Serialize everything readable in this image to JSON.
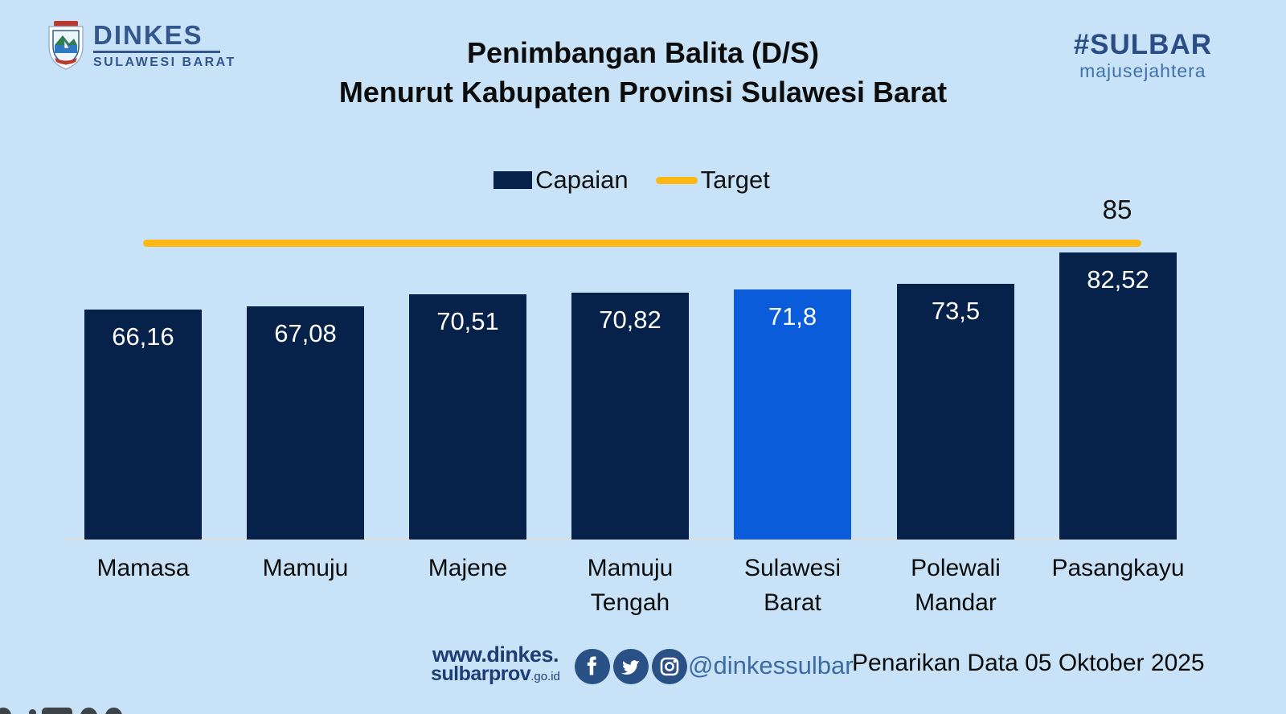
{
  "logo": {
    "title": "DINKES",
    "subtitle": "SULAWESI BARAT"
  },
  "title": {
    "line1": "Penimbangan Balita (D/S)",
    "line2": "Menurut Kabupaten Provinsi Sulawesi Barat"
  },
  "brand": {
    "hashtag": "#SULBAR",
    "tagline": "majusejahtera"
  },
  "legend": {
    "capaian": "Capaian",
    "target": "Target"
  },
  "chart_data": {
    "type": "bar",
    "title": "Penimbangan Balita (D/S) Menurut Kabupaten Provinsi Sulawesi Barat",
    "categories": [
      "Mamasa",
      "Mamuju",
      "Majene",
      "Mamuju Tengah",
      "Sulawesi Barat",
      "Polewali Mandar",
      "Pasangkayu"
    ],
    "values": [
      66.16,
      67.08,
      70.51,
      70.82,
      71.8,
      73.5,
      82.52
    ],
    "value_labels": [
      "66,16",
      "67,08",
      "70,51",
      "70,82",
      "71,8",
      "73,5",
      "82,52"
    ],
    "target_value": 85,
    "target_label": "85",
    "highlight_index": 4,
    "highlight_category": "Sulawesi Barat",
    "legend": [
      "Capaian",
      "Target"
    ],
    "legend_position": "top-center",
    "ylim": [
      0,
      85
    ],
    "grid": false,
    "colors": {
      "background": "#c8e3f7",
      "capaian_bar": "#06214a",
      "highlight_bar": "#0b5cdb",
      "target_line": "#fdb815"
    }
  },
  "footer": {
    "website_line1": "www.dinkes.",
    "website_line2": "sulbarprov",
    "website_tld": ".go.id",
    "social_icons": [
      "facebook-icon",
      "twitter-icon",
      "instagram-icon"
    ],
    "social_handle": "@dinkessulbar",
    "note": "Penarikan Data 05 Oktober 2025"
  }
}
